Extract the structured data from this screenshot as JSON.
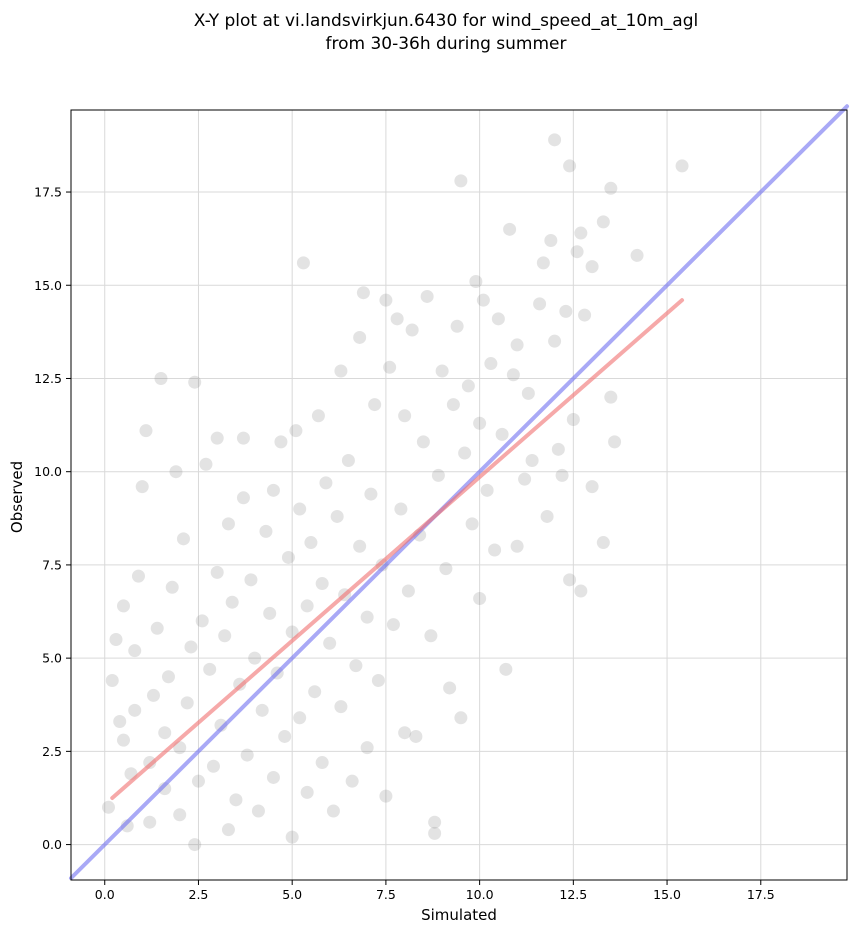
{
  "chart_data": {
    "type": "scatter",
    "title_lines": [
      "X-Y plot at vi.landsvirkjun.6430 for wind_speed_at_10m_agl",
      "from 30-36h during summer"
    ],
    "xlabel": "Simulated",
    "ylabel": "Observed",
    "xlim": [
      -0.9,
      19.8
    ],
    "ylim": [
      -0.95,
      19.7
    ],
    "xticks": [
      0.0,
      2.5,
      5.0,
      7.5,
      10.0,
      12.5,
      15.0,
      17.5
    ],
    "yticks": [
      0.0,
      2.5,
      5.0,
      7.5,
      10.0,
      12.5,
      15.0,
      17.5
    ],
    "xtick_labels": [
      "0.0",
      "2.5",
      "5.0",
      "7.5",
      "10.0",
      "12.5",
      "15.0",
      "17.5"
    ],
    "ytick_labels": [
      "0.0",
      "2.5",
      "5.0",
      "7.5",
      "10.0",
      "12.5",
      "15.0",
      "17.5"
    ],
    "grid": true,
    "point_color": "#808080",
    "point_opacity": 0.22,
    "identity_line": {
      "x": [
        -0.9,
        19.8
      ],
      "y": [
        -0.9,
        19.8
      ],
      "color": "#6f6ff0"
    },
    "fit_line": {
      "x": [
        0.2,
        15.4
      ],
      "y": [
        1.25,
        14.6
      ],
      "color": "#f07070"
    },
    "points": [
      [
        0.1,
        1.0
      ],
      [
        0.2,
        4.4
      ],
      [
        0.3,
        5.5
      ],
      [
        0.4,
        3.3
      ],
      [
        0.5,
        2.8
      ],
      [
        0.5,
        6.4
      ],
      [
        0.6,
        0.5
      ],
      [
        0.7,
        1.9
      ],
      [
        0.8,
        3.6
      ],
      [
        0.8,
        5.2
      ],
      [
        0.9,
        7.2
      ],
      [
        1.0,
        9.6
      ],
      [
        1.1,
        11.1
      ],
      [
        1.2,
        0.6
      ],
      [
        1.2,
        2.2
      ],
      [
        1.3,
        4.0
      ],
      [
        1.4,
        5.8
      ],
      [
        1.5,
        12.5
      ],
      [
        1.6,
        1.5
      ],
      [
        1.6,
        3.0
      ],
      [
        1.7,
        4.5
      ],
      [
        1.8,
        6.9
      ],
      [
        1.9,
        10.0
      ],
      [
        2.0,
        0.8
      ],
      [
        2.0,
        2.6
      ],
      [
        2.1,
        8.2
      ],
      [
        2.2,
        3.8
      ],
      [
        2.3,
        5.3
      ],
      [
        2.4,
        12.4
      ],
      [
        2.4,
        0.0
      ],
      [
        2.5,
        1.7
      ],
      [
        2.6,
        6.0
      ],
      [
        2.7,
        10.2
      ],
      [
        2.8,
        4.7
      ],
      [
        2.9,
        2.1
      ],
      [
        3.0,
        7.3
      ],
      [
        3.0,
        10.9
      ],
      [
        3.1,
        3.2
      ],
      [
        3.2,
        5.6
      ],
      [
        3.3,
        0.4
      ],
      [
        3.3,
        8.6
      ],
      [
        3.4,
        6.5
      ],
      [
        3.5,
        1.2
      ],
      [
        3.6,
        4.3
      ],
      [
        3.7,
        10.9
      ],
      [
        3.7,
        9.3
      ],
      [
        3.8,
        2.4
      ],
      [
        3.9,
        7.1
      ],
      [
        4.0,
        5.0
      ],
      [
        4.1,
        0.9
      ],
      [
        4.2,
        3.6
      ],
      [
        4.3,
        8.4
      ],
      [
        4.4,
        6.2
      ],
      [
        4.5,
        1.8
      ],
      [
        4.5,
        9.5
      ],
      [
        4.6,
        4.6
      ],
      [
        4.7,
        10.8
      ],
      [
        4.8,
        2.9
      ],
      [
        4.9,
        7.7
      ],
      [
        5.0,
        0.2
      ],
      [
        5.0,
        5.7
      ],
      [
        5.1,
        11.1
      ],
      [
        5.2,
        3.4
      ],
      [
        5.2,
        9.0
      ],
      [
        5.3,
        15.6
      ],
      [
        5.4,
        6.4
      ],
      [
        5.4,
        1.4
      ],
      [
        5.5,
        8.1
      ],
      [
        5.6,
        4.1
      ],
      [
        5.7,
        11.5
      ],
      [
        5.8,
        2.2
      ],
      [
        5.8,
        7.0
      ],
      [
        5.9,
        9.7
      ],
      [
        6.0,
        5.4
      ],
      [
        6.1,
        0.9
      ],
      [
        6.2,
        8.8
      ],
      [
        6.3,
        3.7
      ],
      [
        6.3,
        12.7
      ],
      [
        6.4,
        6.7
      ],
      [
        6.5,
        10.3
      ],
      [
        6.6,
        1.7
      ],
      [
        6.7,
        4.8
      ],
      [
        6.8,
        13.6
      ],
      [
        6.8,
        8.0
      ],
      [
        6.9,
        14.8
      ],
      [
        7.0,
        6.1
      ],
      [
        7.0,
        2.6
      ],
      [
        7.1,
        9.4
      ],
      [
        7.2,
        11.8
      ],
      [
        7.3,
        4.4
      ],
      [
        7.4,
        7.5
      ],
      [
        7.5,
        14.6
      ],
      [
        7.5,
        1.3
      ],
      [
        7.6,
        12.8
      ],
      [
        7.7,
        5.9
      ],
      [
        7.8,
        14.1
      ],
      [
        7.9,
        9.0
      ],
      [
        8.0,
        3.0
      ],
      [
        8.0,
        11.5
      ],
      [
        8.1,
        6.8
      ],
      [
        8.2,
        13.8
      ],
      [
        8.3,
        2.9
      ],
      [
        8.4,
        8.3
      ],
      [
        8.5,
        10.8
      ],
      [
        8.6,
        14.7
      ],
      [
        8.7,
        5.6
      ],
      [
        8.8,
        0.3
      ],
      [
        8.8,
        0.6
      ],
      [
        8.9,
        9.9
      ],
      [
        9.0,
        12.7
      ],
      [
        9.1,
        7.4
      ],
      [
        9.2,
        4.2
      ],
      [
        9.3,
        11.8
      ],
      [
        9.4,
        13.9
      ],
      [
        9.5,
        17.8
      ],
      [
        9.5,
        3.4
      ],
      [
        9.6,
        10.5
      ],
      [
        9.7,
        12.3
      ],
      [
        9.8,
        8.6
      ],
      [
        9.9,
        15.1
      ],
      [
        10.0,
        11.3
      ],
      [
        10.0,
        6.6
      ],
      [
        10.1,
        14.6
      ],
      [
        10.2,
        9.5
      ],
      [
        10.3,
        12.9
      ],
      [
        10.4,
        7.9
      ],
      [
        10.5,
        14.1
      ],
      [
        10.6,
        11.0
      ],
      [
        10.7,
        4.7
      ],
      [
        10.8,
        16.5
      ],
      [
        10.9,
        12.6
      ],
      [
        11.0,
        8.0
      ],
      [
        11.0,
        13.4
      ],
      [
        11.2,
        9.8
      ],
      [
        11.3,
        12.1
      ],
      [
        11.4,
        10.3
      ],
      [
        11.6,
        14.5
      ],
      [
        11.7,
        15.6
      ],
      [
        11.8,
        8.8
      ],
      [
        11.9,
        16.2
      ],
      [
        12.0,
        13.5
      ],
      [
        12.0,
        18.9
      ],
      [
        12.1,
        10.6
      ],
      [
        12.2,
        9.9
      ],
      [
        12.3,
        14.3
      ],
      [
        12.4,
        7.1
      ],
      [
        12.4,
        18.2
      ],
      [
        12.5,
        11.4
      ],
      [
        12.6,
        15.9
      ],
      [
        12.7,
        6.8
      ],
      [
        12.7,
        16.4
      ],
      [
        12.8,
        14.2
      ],
      [
        13.0,
        9.6
      ],
      [
        13.0,
        15.5
      ],
      [
        13.3,
        8.1
      ],
      [
        13.3,
        16.7
      ],
      [
        13.5,
        12.0
      ],
      [
        13.5,
        17.6
      ],
      [
        13.6,
        10.8
      ],
      [
        14.2,
        15.8
      ],
      [
        15.4,
        18.2
      ]
    ]
  }
}
